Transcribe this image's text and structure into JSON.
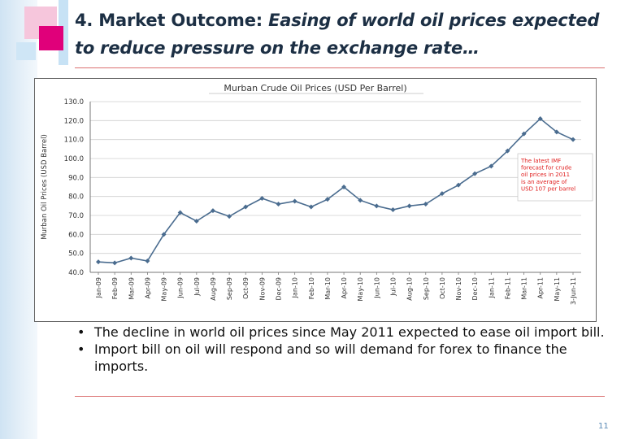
{
  "slide": {
    "title_bold": "4. Market Outcome:",
    "title_italic": "Easing of world oil prices  expected to reduce pressure on the exchange  rate…",
    "page_number": "11"
  },
  "bullets": [
    "The decline in world oil prices since May 2011 expected to ease oil import bill.",
    "Import bill on oil will respond and so will demand for forex to finance the imports."
  ],
  "colors": {
    "series": "#4a6c8f",
    "annotation": "#e02020",
    "accent": "#e0007a"
  },
  "chart_data": {
    "type": "line",
    "title": "Murban Crude Oil Prices (USD Per Barrel)",
    "ylabel": "Murban Oil Prices (USD Barrel)",
    "xlabel": "",
    "ylim": [
      40,
      130
    ],
    "yticks": [
      40,
      50,
      60,
      70,
      80,
      90,
      100,
      110,
      120,
      130
    ],
    "ytick_labels": [
      "40.0",
      "50.0",
      "60.0",
      "70.0",
      "80.0",
      "90.0",
      "100.0",
      "110.0",
      "120.0",
      "130.0"
    ],
    "grid": true,
    "categories": [
      "Jan-09",
      "Feb-09",
      "Mar-09",
      "Apr-09",
      "May-09",
      "Jun-09",
      "Jul-09",
      "Aug-09",
      "Sep-09",
      "Oct-09",
      "Nov-09",
      "Dec-09",
      "Jan-10",
      "Feb-10",
      "Mar-10",
      "Apr-10",
      "May-10",
      "Jun-10",
      "Jul-10",
      "Aug-10",
      "Sep-10",
      "Oct-10",
      "Nov-10",
      "Dec-10",
      "Jan-11",
      "Feb-11",
      "Mar-11",
      "Apr-11",
      "May-11",
      "3-Jun-11"
    ],
    "category_labels": [
      "Jan-09",
      "Feb-09",
      "Mar-09",
      "Apr-09",
      "May-09",
      "Jun-09",
      "Jul-09",
      "Aug-09",
      "Sep-09",
      "Oct-09",
      "Nov-09",
      "Dec-09",
      "Jan-10",
      "Feb-10",
      "Mar-10",
      "Apr-10",
      "May-10",
      "Jun-10",
      "Jul-10",
      "Aug-10",
      "Sep-10",
      "Oct-10",
      "Nov-10",
      "Dec-10",
      "Jan-11",
      "Feb-11",
      "Mar-11",
      "Apr-11",
      "May-11",
      "3-Jun-11"
    ],
    "series": [
      {
        "name": "Murban Crude Oil Price",
        "values": [
          45.5,
          45,
          47.5,
          46,
          60,
          71.5,
          67,
          72.5,
          69.5,
          74.5,
          79,
          76,
          77.5,
          74.5,
          78.5,
          85,
          78,
          75,
          73,
          75,
          76,
          81.5,
          86,
          92,
          96,
          104,
          113,
          121,
          114,
          110
        ]
      }
    ],
    "annotation": "The latest IMF forecast for crude oil prices in 2011 is an average of USD 107 per barrel"
  }
}
